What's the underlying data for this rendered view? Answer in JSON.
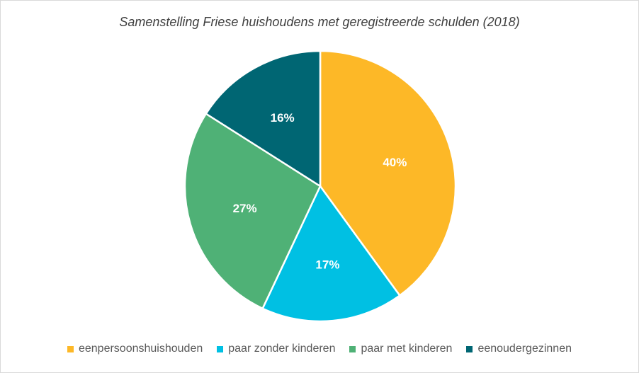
{
  "chart_data": {
    "type": "pie",
    "title": "Samenstelling Friese huishoudens met geregistreerde schulden (2018)",
    "categories": [
      "eenpersoonshuishouden",
      "paar zonder kinderen",
      "paar met kinderen",
      "eenoudergezinnen"
    ],
    "values": [
      40,
      17,
      27,
      16
    ],
    "data_labels": [
      "40%",
      "17%",
      "27%",
      "16%"
    ],
    "colors": [
      "#FDB827",
      "#00C0E3",
      "#4FB176",
      "#006673"
    ],
    "legend_position": "bottom"
  }
}
